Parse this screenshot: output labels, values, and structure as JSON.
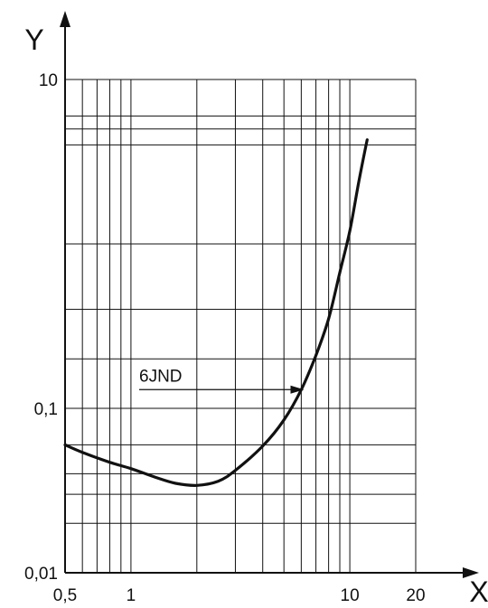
{
  "chart_data": {
    "type": "line",
    "x_scale": "log",
    "y_scale": "log",
    "xlabel": "X",
    "ylabel": "Y",
    "xlim": [
      0.5,
      20
    ],
    "ylim": [
      0.01,
      10
    ],
    "x_ticks": [
      {
        "value": 0.5,
        "label": "0,5"
      },
      {
        "value": 1,
        "label": "1"
      },
      {
        "value": 10,
        "label": "10"
      },
      {
        "value": 20,
        "label": "20"
      }
    ],
    "y_ticks": [
      {
        "value": 0.01,
        "label": "0,01"
      },
      {
        "value": 0.1,
        "label": "0,1"
      },
      {
        "value": 10,
        "label": "10"
      }
    ],
    "x_gridlines": [
      0.6,
      0.7,
      0.8,
      0.9,
      1,
      2,
      3,
      4,
      5,
      6,
      7,
      8,
      9,
      10,
      20
    ],
    "y_gridlines": [
      0.02,
      0.03,
      0.04,
      0.06,
      0.1,
      0.2,
      0.4,
      1,
      4,
      5,
      6,
      10
    ],
    "grid": true,
    "series": [
      {
        "x": [
          0.5,
          0.6,
          0.8,
          1.0,
          1.3,
          1.6,
          2.0,
          2.5,
          3.0,
          4.0,
          5.0,
          6.0,
          7.0,
          8.0,
          9.0,
          10.0,
          11.0,
          12.0
        ],
        "y": [
          0.06,
          0.054,
          0.047,
          0.043,
          0.038,
          0.035,
          0.034,
          0.036,
          0.042,
          0.059,
          0.085,
          0.13,
          0.21,
          0.35,
          0.67,
          1.2,
          2.4,
          4.3
        ]
      }
    ],
    "annotations": [
      {
        "text": "6JND",
        "arrow_to": {
          "x": 6.3,
          "y": 0.13
        }
      }
    ]
  }
}
